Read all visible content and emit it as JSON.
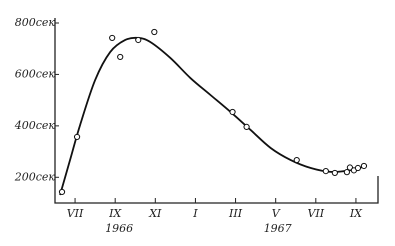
{
  "chart_data": {
    "type": "scatter",
    "xlim": [
      6,
      22.1
    ],
    "ylim": [
      100,
      800
    ],
    "xticks": [
      {
        "value": 7,
        "label": "VII"
      },
      {
        "value": 9,
        "label": "IX"
      },
      {
        "value": 11,
        "label": "XI"
      },
      {
        "value": 13,
        "label": "I"
      },
      {
        "value": 15,
        "label": "III"
      },
      {
        "value": 17,
        "label": "V"
      },
      {
        "value": 19,
        "label": "VII"
      },
      {
        "value": 21,
        "label": "IX"
      }
    ],
    "yticks": [
      {
        "value": 200,
        "label": "200сек"
      },
      {
        "value": 400,
        "label": "400сек"
      },
      {
        "value": 600,
        "label": "600сек"
      },
      {
        "value": 800,
        "label": "800сек"
      }
    ],
    "year_labels": [
      {
        "x": 9.2,
        "text": "1966"
      },
      {
        "x": 17.1,
        "text": "1967"
      }
    ],
    "series": [
      {
        "type": "line",
        "color": "#111",
        "x": [
          6.25,
          6.75,
          7.25,
          8,
          8.75,
          9.5,
          10.15,
          10.75,
          11.75,
          12.75,
          13.75,
          14.75,
          15.75,
          16.75,
          17.75,
          18.75,
          19.75,
          20.75,
          21.5
        ],
        "values": [
          131,
          267,
          403,
          578,
          687,
          734,
          742,
          726,
          664,
          586,
          520,
          454,
          384,
          314,
          267,
          236,
          221,
          228,
          244
        ]
      },
      {
        "type": "scatter",
        "color": "#111",
        "x": [
          6.35,
          7.1,
          8.85,
          9.25,
          10.15,
          10.95,
          14.85,
          15.55,
          18.05,
          19.5,
          19.95,
          20.55,
          20.7,
          20.9,
          21.1,
          21.4
        ],
        "values": [
          143,
          357,
          742,
          668,
          734,
          765,
          454,
          396,
          267,
          224,
          217,
          220,
          238,
          227,
          236,
          244
        ]
      }
    ]
  }
}
